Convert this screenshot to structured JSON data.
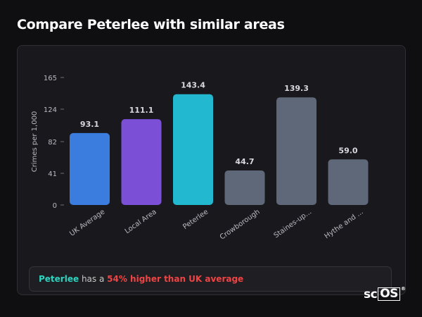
{
  "page": {
    "title": "Compare Peterlee with similar areas"
  },
  "chart_data": {
    "type": "bar",
    "ylabel": "Crimes per 1,000",
    "xlabel": "",
    "ylim": [
      0,
      165
    ],
    "yticks": [
      0,
      41,
      82,
      124,
      165
    ],
    "categories": [
      "UK Average",
      "Local Area",
      "Peterlee",
      "Crowborough",
      "Staines-up...",
      "Hythe and ..."
    ],
    "values": [
      93.1,
      111.1,
      143.4,
      44.7,
      139.3,
      59.0
    ],
    "value_labels": [
      "93.1",
      "111.1",
      "143.4",
      "44.7",
      "139.3",
      "59.0"
    ],
    "colors": [
      "#3b7dde",
      "#7b4fd6",
      "#22b8cf",
      "#5f6878",
      "#5f6878",
      "#5f6878"
    ],
    "grid": false,
    "legend": "none"
  },
  "summary": {
    "area": "Peterlee",
    "middle": " has a ",
    "difference": "54% higher than UK average"
  },
  "brand": {
    "left": "sc",
    "boxed": "OS",
    "mark": "®"
  },
  "colors": {
    "area_highlight": "#2dd4bf",
    "difference_highlight": "#ef4444"
  }
}
